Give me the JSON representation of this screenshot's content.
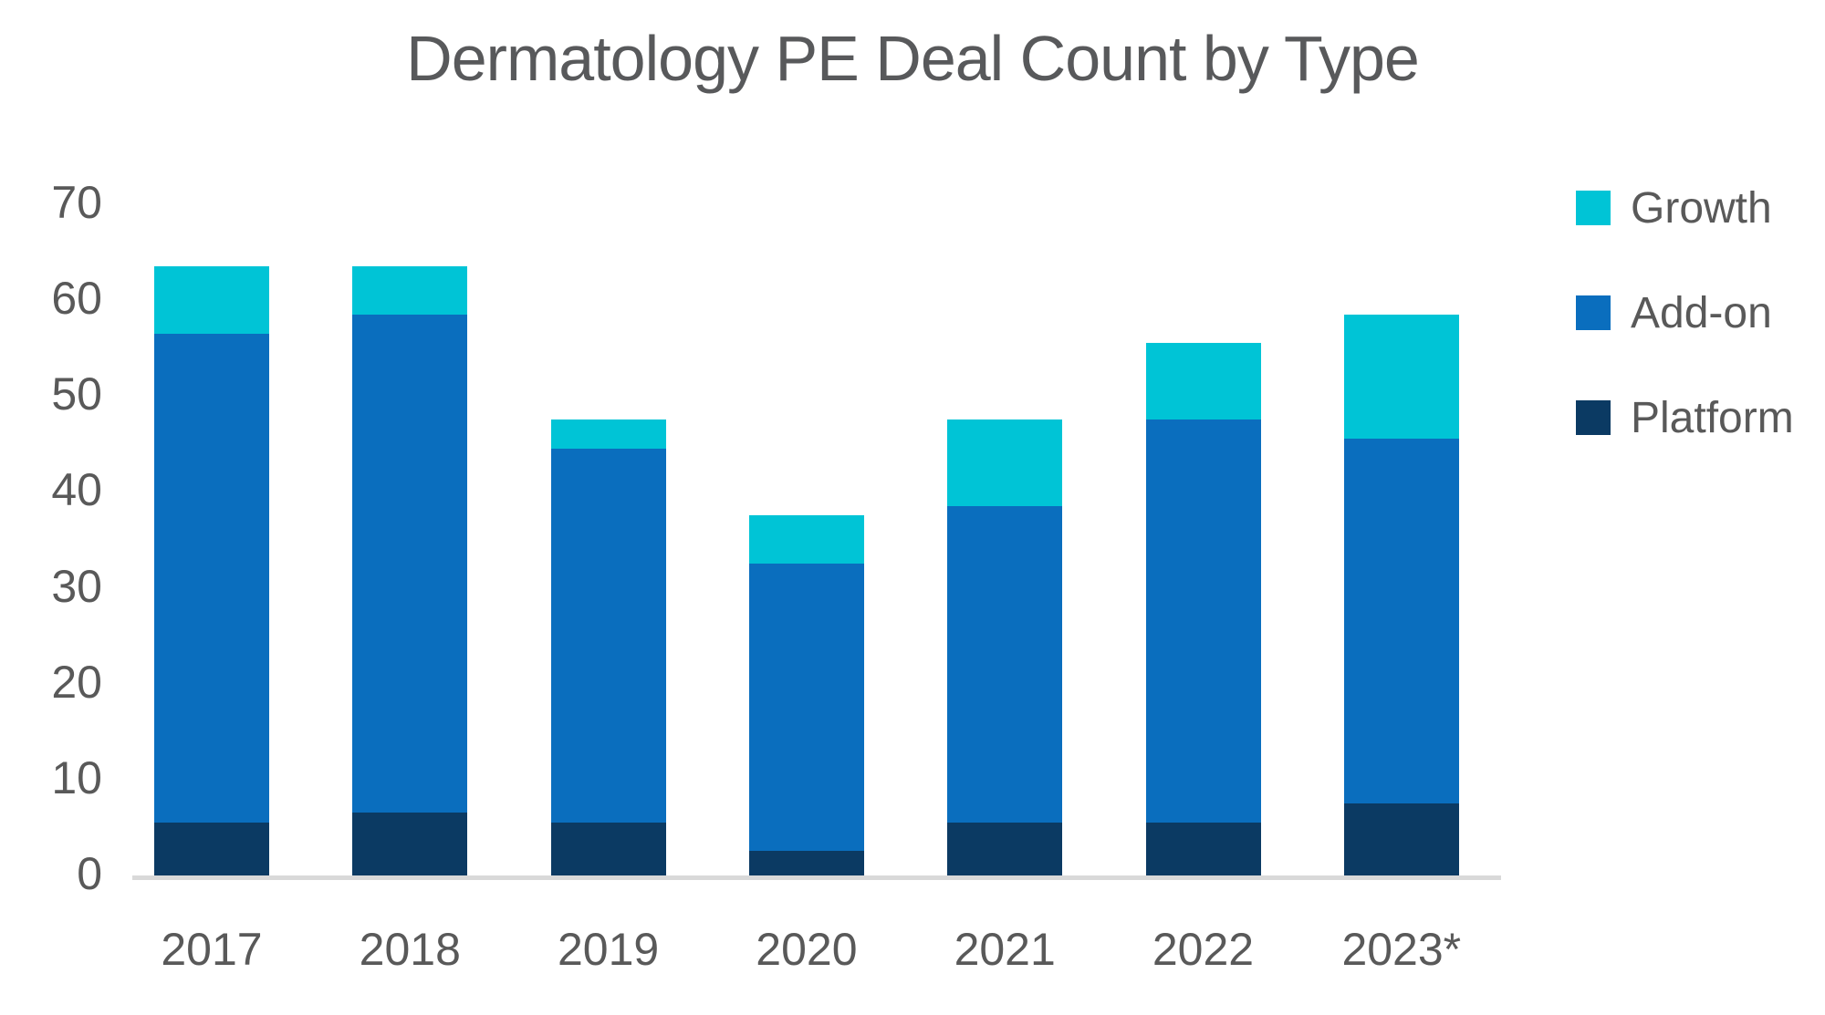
{
  "title": "Dermatology PE Deal Count by Type",
  "y_axis": {
    "ticks": [
      0,
      10,
      20,
      30,
      40,
      50,
      60,
      70
    ],
    "min": 0,
    "max": 70
  },
  "x_axis": {
    "categories": [
      "2017",
      "2018",
      "2019",
      "2020",
      "2021",
      "2022",
      "2023*"
    ]
  },
  "legend": {
    "position": "right",
    "items": [
      {
        "label": "Growth",
        "color": "#00C4D6"
      },
      {
        "label": "Add-on",
        "color": "#0A6EBE"
      },
      {
        "label": "Platform",
        "color": "#0B3A63"
      }
    ]
  },
  "colors": {
    "title_text": "#58595B",
    "axis_text": "#595959",
    "axis_line": "#D9D9D9"
  },
  "chart_data": {
    "type": "bar",
    "stacked": true,
    "title": "Dermatology PE Deal Count by Type",
    "categories": [
      "2017",
      "2018",
      "2019",
      "2020",
      "2021",
      "2022",
      "2023*"
    ],
    "series": [
      {
        "name": "Platform",
        "color": "#0B3A63",
        "values": [
          6,
          7,
          6,
          3,
          6,
          6,
          8
        ]
      },
      {
        "name": "Add-on",
        "color": "#0A6EBE",
        "values": [
          51,
          52,
          39,
          30,
          33,
          42,
          38
        ]
      },
      {
        "name": "Growth",
        "color": "#00C4D6",
        "values": [
          7,
          5,
          3,
          5,
          9,
          8,
          13
        ]
      }
    ],
    "totals": [
      64,
      64,
      48,
      38,
      48,
      56,
      59
    ],
    "xlabel": "",
    "ylabel": "",
    "ylim": [
      0,
      70
    ],
    "grid": false,
    "legend_position": "right"
  }
}
